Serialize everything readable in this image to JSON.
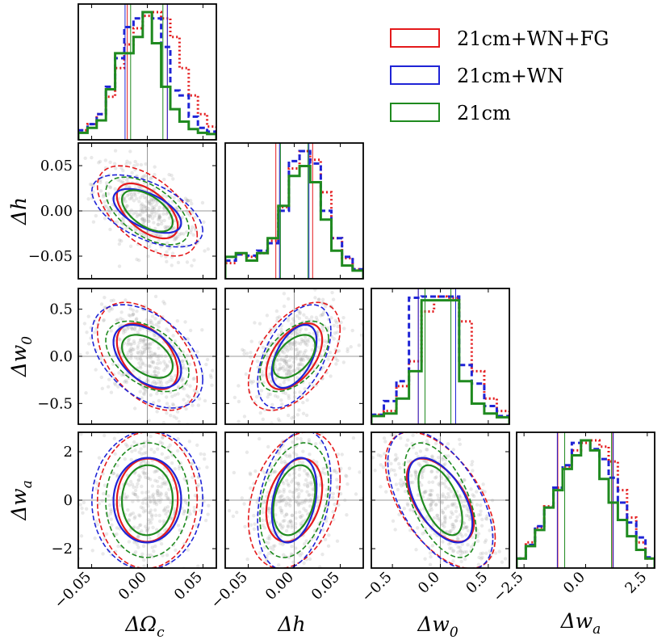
{
  "chart_data": {
    "type": "corner",
    "title": "",
    "parameters": [
      {
        "key": "Oc",
        "label": "ΔΩc",
        "base": "ΔΩ",
        "sub": "c",
        "range": [
          -0.062,
          0.062
        ],
        "ticks": [
          -0.05,
          0.0,
          0.05
        ],
        "tick_labels": [
          "−0.05",
          "0.00",
          "0.05"
        ]
      },
      {
        "key": "h",
        "label": "Δh",
        "base": "Δh",
        "sub": "",
        "range": [
          -0.075,
          0.075
        ],
        "ticks": [
          -0.05,
          0.0,
          0.05
        ],
        "tick_labels": [
          "−0.05",
          "0.00",
          "0.05"
        ]
      },
      {
        "key": "w0",
        "label": "Δw0",
        "base": "Δw",
        "sub": "0",
        "range": [
          -0.72,
          0.72
        ],
        "ticks": [
          -0.5,
          0.0,
          0.5
        ],
        "tick_labels": [
          "−0.5",
          "0.0",
          "0.5"
        ]
      },
      {
        "key": "wa",
        "label": "Δwa",
        "base": "Δw",
        "sub": "a",
        "range": [
          -2.8,
          2.8
        ],
        "ticks": [
          -2.5,
          0.0,
          2.5
        ],
        "tick_labels": [
          "−2.5",
          "0.0",
          "2.5"
        ],
        "y_ticks": [
          -2,
          0,
          2
        ],
        "y_tick_labels": [
          "−2",
          "0",
          "2"
        ]
      }
    ],
    "legend": {
      "position": "top-right",
      "entries": [
        {
          "name": "21cm+WN+FG",
          "color": "#e41a1c"
        },
        {
          "name": "21cm+WN",
          "color": "#1f24d6"
        },
        {
          "name": "21cm",
          "color": "#1f8a1f"
        }
      ]
    },
    "series": [
      {
        "name": "21cm+WN+FG",
        "color": "#e41a1c",
        "hist_style": "dotted",
        "sigma": {
          "Oc": 0.018,
          "h": 0.02,
          "w0": 0.23,
          "wa": 1.13
        },
        "lines_1sigma": {
          "Oc": [
            -0.018,
            0.018
          ],
          "h": [
            -0.02,
            0.02
          ],
          "w0": [
            -0.23,
            0.16
          ],
          "wa": [
            -1.13,
            1.1
          ]
        },
        "hist": {
          "Oc": [
            0.05,
            0.1,
            0.18,
            0.32,
            0.55,
            0.74,
            0.87,
            0.97,
            1.0,
            0.95,
            0.8,
            0.55,
            0.33,
            0.18,
            0.08
          ],
          "h": [
            0.1,
            0.17,
            0.15,
            0.18,
            0.28,
            0.55,
            0.86,
            1.0,
            0.93,
            0.67,
            0.3,
            0.14,
            0.05
          ],
          "w0": [
            0.05,
            0.08,
            0.28,
            0.48,
            0.88,
            1.0,
            0.99,
            0.8,
            0.4,
            0.18,
            0.08
          ],
          "wa": [
            0.05,
            0.18,
            0.3,
            0.47,
            0.62,
            0.79,
            0.92,
            0.98,
            1.0,
            0.95,
            0.83,
            0.6,
            0.38,
            0.18,
            0.05
          ]
        }
      },
      {
        "name": "21cm+WN",
        "color": "#1f24d6",
        "hist_style": "dashed",
        "sigma": {
          "Oc": 0.02,
          "h": 0.016,
          "w0": 0.22,
          "wa": 1.15
        },
        "lines_1sigma": {
          "Oc": [
            -0.02,
            0.018
          ],
          "h": [
            -0.016,
            0.016
          ],
          "w0": [
            -0.23,
            0.16
          ],
          "wa": [
            -1.15,
            1.12
          ]
        },
        "hist": {
          "Oc": [
            0.05,
            0.1,
            0.18,
            0.4,
            0.63,
            0.88,
            0.95,
            1.0,
            0.95,
            0.72,
            0.37,
            0.33,
            0.16,
            0.07,
            0.04
          ],
          "h": [
            0.12,
            0.17,
            0.16,
            0.2,
            0.26,
            0.52,
            0.92,
            1.0,
            0.9,
            0.52,
            0.3,
            0.15,
            0.05
          ],
          "w0": [
            0.05,
            0.16,
            0.32,
            0.99,
            1.0,
            1.0,
            1.0,
            0.45,
            0.3,
            0.12,
            0.04
          ],
          "wa": [
            0.05,
            0.16,
            0.31,
            0.46,
            0.62,
            0.8,
            0.98,
            1.0,
            0.93,
            0.85,
            0.7,
            0.5,
            0.34,
            0.22,
            0.06
          ]
        }
      },
      {
        "name": "21cm",
        "color": "#1f8a1f",
        "hist_style": "solid",
        "sigma": {
          "Oc": 0.015,
          "h": 0.015,
          "w0": 0.15,
          "wa": 0.95
        },
        "lines_1sigma": {
          "Oc": [
            -0.015,
            0.014
          ],
          "h": [
            -0.015,
            0.015
          ],
          "w0": [
            -0.16,
            0.11
          ],
          "wa": [
            -0.85,
            1.05
          ]
        },
        "hist": {
          "Oc": [
            0.03,
            0.07,
            0.13,
            0.38,
            0.67,
            0.67,
            0.8,
            1.0,
            0.75,
            0.4,
            0.22,
            0.12,
            0.06,
            0.03,
            0.02
          ],
          "h": [
            0.15,
            0.18,
            0.12,
            0.18,
            0.3,
            0.56,
            0.8,
            0.88,
            0.75,
            0.45,
            0.2,
            0.08,
            0.04
          ],
          "w0": [
            0.04,
            0.06,
            0.18,
            0.4,
            0.97,
            0.97,
            0.97,
            0.32,
            0.14,
            0.06,
            0.03
          ],
          "wa": [
            0.05,
            0.15,
            0.28,
            0.46,
            0.6,
            0.77,
            0.88,
            1.0,
            0.92,
            0.69,
            0.5,
            0.36,
            0.23,
            0.12,
            0.05
          ]
        }
      }
    ],
    "correlations": {
      "h|Oc": -0.55,
      "w0|Oc": -0.45,
      "w0|h": 0.5,
      "wa|Oc": 0.02,
      "wa|h": 0.3,
      "wa|w0": -0.55
    },
    "contour_levels_sigma": [
      1,
      2
    ],
    "fiducial": 0,
    "grid": false
  }
}
